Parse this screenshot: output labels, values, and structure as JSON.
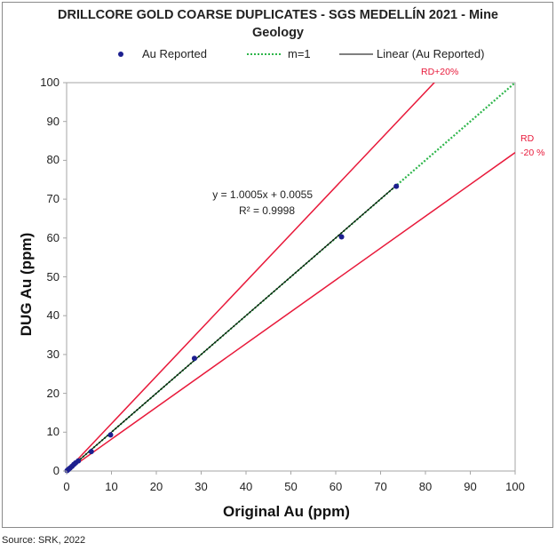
{
  "title_line1": "DRILLCORE GOLD COARSE DUPLICATES - SGS MEDELLÍN 2021 - Mine",
  "title_line2": "Geology",
  "source": "Source: SRK, 2022",
  "legend": {
    "au_reported": "Au Reported",
    "m1": "m=1",
    "linear": "Linear (Au Reported)"
  },
  "annotations": {
    "rd_plus": "RD+20%",
    "rd_minus_1": "RD",
    "rd_minus_2": "-20 %",
    "equation": "y = 1.0005x + 0.0055",
    "r2": "R² = 0.9998"
  },
  "colors": {
    "points": "#1c1f8f",
    "m1_line": "#2db54a",
    "linear_line": "#000000",
    "rd_lines": "#e8193a"
  },
  "chart_data": {
    "type": "scatter",
    "title": "DRILLCORE GOLD COARSE DUPLICATES - SGS MEDELLÍN 2021 - Mine Geology",
    "xlabel": "Original Au (ppm)",
    "ylabel": "DUG Au (ppm)",
    "xlim": [
      0,
      100
    ],
    "ylim": [
      0,
      100
    ],
    "x_ticks": [
      "0",
      "10",
      "20",
      "30",
      "40",
      "50",
      "60",
      "70",
      "80",
      "90",
      "100"
    ],
    "y_ticks": [
      "0",
      "10",
      "20",
      "30",
      "40",
      "50",
      "60",
      "70",
      "80",
      "90",
      "100"
    ],
    "grid": false,
    "legend_position": "top",
    "series": [
      {
        "name": "Au Reported",
        "points": [
          [
            0.1,
            0.1
          ],
          [
            0.3,
            0.3
          ],
          [
            0.5,
            0.5
          ],
          [
            0.8,
            0.8
          ],
          [
            1.2,
            1.2
          ],
          [
            1.6,
            1.7
          ],
          [
            2.0,
            2.1
          ],
          [
            2.6,
            2.6
          ],
          [
            5.5,
            5.0
          ],
          [
            9.8,
            9.3
          ],
          [
            28.5,
            29.0
          ],
          [
            61.3,
            60.3
          ],
          [
            73.5,
            73.3
          ]
        ]
      }
    ],
    "reference_lines": [
      {
        "name": "m=1",
        "slope": 1.0,
        "intercept": 0
      },
      {
        "name": "Linear (Au Reported)",
        "slope": 1.0005,
        "intercept": 0.0055,
        "x_range": [
          0,
          73.5
        ]
      },
      {
        "label": "RD+20%",
        "slope": 1.22,
        "intercept": 0
      },
      {
        "label": "RD -20 %",
        "slope": 0.82,
        "intercept": 0
      }
    ]
  }
}
